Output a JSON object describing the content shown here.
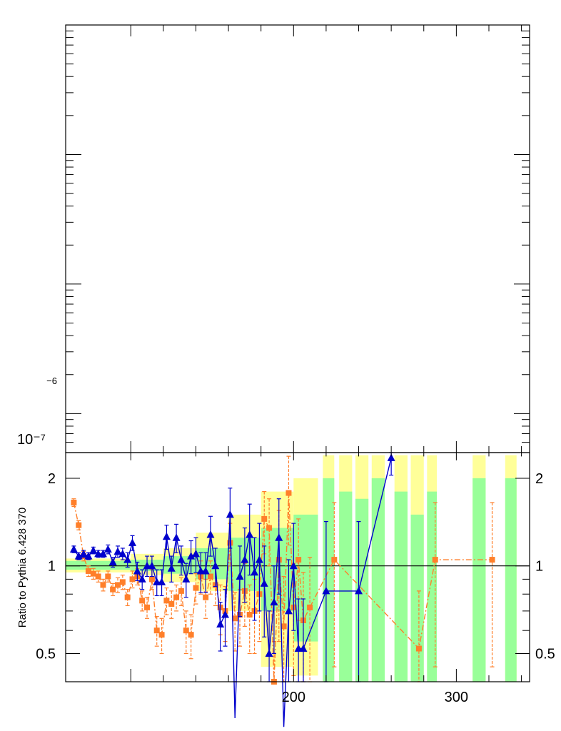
{
  "chart_data": [
    {
      "panel": "top",
      "type": "line",
      "title": "",
      "xlabel": "",
      "ylabel": "",
      "yscale": "log",
      "ylim": [
        5e-08,
        0.0001
      ],
      "xlim": [
        60,
        345
      ],
      "ytick_labels": [
        "10⁻⁷",
        "−6"
      ],
      "series": []
    },
    {
      "panel": "bottom",
      "type": "line",
      "xlabel": "",
      "ylabel": "Ratio to Pythia 6.428 370",
      "yscale": "log",
      "ylim": [
        0.4,
        2.45
      ],
      "xlim": [
        60,
        345
      ],
      "xticks": [
        200,
        300
      ],
      "xtick_labels": [
        "200",
        "300"
      ],
      "yticks": [
        0.5,
        1,
        2
      ],
      "ytick_labels": [
        "0.5",
        "1",
        "2"
      ],
      "reference_line": 1,
      "colors": {
        "outer_band": "#ffff99",
        "inner_band": "#99ff99",
        "series_a": "#ff7f2a",
        "series_b": "#0000cc",
        "reference": "#000000"
      },
      "bands": [
        {
          "x0": 60,
          "x1": 100,
          "lo_outer": 0.95,
          "hi_outer": 1.06,
          "lo_inner": 0.97,
          "hi_inner": 1.04
        },
        {
          "x0": 100,
          "x1": 120,
          "lo_outer": 0.93,
          "hi_outer": 1.1,
          "lo_inner": 0.96,
          "hi_inner": 1.05
        },
        {
          "x0": 120,
          "x1": 140,
          "lo_outer": 0.88,
          "hi_outer": 1.15,
          "lo_inner": 0.94,
          "hi_inner": 1.08
        },
        {
          "x0": 140,
          "x1": 160,
          "lo_outer": 0.82,
          "hi_outer": 1.3,
          "lo_inner": 0.9,
          "hi_inner": 1.15
        },
        {
          "x0": 160,
          "x1": 180,
          "lo_outer": 0.7,
          "hi_outer": 1.5,
          "lo_inner": 0.82,
          "hi_inner": 1.25
        },
        {
          "x0": 180,
          "x1": 200,
          "lo_outer": 0.45,
          "hi_outer": 1.8,
          "lo_inner": 0.7,
          "hi_inner": 1.35
        },
        {
          "x0": 200,
          "x1": 215,
          "lo_outer": 0.42,
          "hi_outer": 2.0,
          "lo_inner": 0.55,
          "hi_inner": 1.5
        },
        {
          "x0": 218,
          "x1": 225,
          "lo_outer": 0.4,
          "hi_outer": 2.4,
          "lo_inner": 0.4,
          "hi_inner": 2.0
        },
        {
          "x0": 228,
          "x1": 236,
          "lo_outer": 0.4,
          "hi_outer": 2.4,
          "lo_inner": 0.4,
          "hi_inner": 1.8
        },
        {
          "x0": 238,
          "x1": 246,
          "lo_outer": 0.4,
          "hi_outer": 2.4,
          "lo_inner": 0.4,
          "hi_inner": 1.7
        },
        {
          "x0": 248,
          "x1": 256,
          "lo_outer": 0.4,
          "hi_outer": 2.4,
          "lo_inner": 0.4,
          "hi_inner": 2.0
        },
        {
          "x0": 262,
          "x1": 270,
          "lo_outer": 0.4,
          "hi_outer": 2.4,
          "lo_inner": 0.4,
          "hi_inner": 1.8
        },
        {
          "x0": 272,
          "x1": 280,
          "lo_outer": 0.4,
          "hi_outer": 2.4,
          "lo_inner": 0.4,
          "hi_inner": 1.5
        },
        {
          "x0": 282,
          "x1": 288,
          "lo_outer": 0.4,
          "hi_outer": 2.4,
          "lo_inner": 0.4,
          "hi_inner": 1.8
        },
        {
          "x0": 310,
          "x1": 318,
          "lo_outer": 0.4,
          "hi_outer": 2.4,
          "lo_inner": 0.4,
          "hi_inner": 2.0
        },
        {
          "x0": 330,
          "x1": 337,
          "lo_outer": 0.4,
          "hi_outer": 2.4,
          "lo_inner": 0.4,
          "hi_inner": 2.0
        }
      ],
      "series": [
        {
          "name": "orange-squares-dashdot",
          "marker": "square",
          "linestyle": "dash-dot",
          "x": [
            65,
            68,
            71,
            74,
            77,
            80,
            83,
            86,
            89,
            92,
            95,
            98,
            101,
            104,
            107,
            110,
            113,
            116,
            119,
            122,
            125,
            128,
            131,
            134,
            137,
            140,
            143,
            146,
            149,
            152,
            155,
            158,
            161,
            164,
            167,
            170,
            173,
            176,
            179,
            182,
            185,
            188,
            191,
            194,
            197,
            200,
            203,
            206,
            210,
            225,
            277,
            287,
            322
          ],
          "values": [
            1.65,
            1.38,
            1.08,
            0.96,
            0.94,
            0.92,
            0.86,
            0.92,
            0.83,
            0.86,
            0.88,
            0.78,
            0.9,
            0.92,
            0.76,
            0.72,
            0.9,
            0.6,
            0.58,
            0.76,
            0.74,
            0.78,
            0.82,
            0.6,
            0.58,
            0.84,
            0.92,
            0.78,
            0.92,
            0.86,
            0.72,
            0.7,
            1.2,
            0.66,
            0.68,
            0.82,
            0.68,
            0.7,
            0.8,
            1.45,
            1.35,
            0.4,
            1.05,
            0.62,
            1.78,
            0.72,
            1.05,
            0.65,
            0.72,
            1.05,
            0.52,
            1.05,
            1.05
          ],
          "err": [
            0.05,
            0.05,
            0.04,
            0.04,
            0.04,
            0.04,
            0.04,
            0.04,
            0.04,
            0.05,
            0.05,
            0.05,
            0.06,
            0.06,
            0.06,
            0.06,
            0.07,
            0.07,
            0.08,
            0.08,
            0.08,
            0.08,
            0.09,
            0.1,
            0.1,
            0.1,
            0.12,
            0.12,
            0.12,
            0.13,
            0.14,
            0.15,
            0.2,
            0.15,
            0.15,
            0.2,
            0.18,
            0.2,
            0.25,
            0.35,
            0.35,
            0.15,
            0.5,
            0.3,
            0.6,
            0.3,
            0.4,
            0.3,
            0.35,
            0.6,
            0.3,
            0.6,
            0.6
          ]
        },
        {
          "name": "blue-triangles-solid",
          "marker": "triangle",
          "linestyle": "solid",
          "x": [
            65,
            68,
            71,
            74,
            77,
            80,
            83,
            86,
            89,
            92,
            95,
            98,
            101,
            104,
            107,
            110,
            113,
            116,
            119,
            122,
            125,
            128,
            131,
            134,
            137,
            140,
            143,
            146,
            149,
            152,
            155,
            158,
            161,
            164,
            167,
            170,
            173,
            176,
            179,
            182,
            185,
            188,
            191,
            194,
            197,
            200,
            203,
            206,
            220,
            240,
            260
          ],
          "values": [
            1.14,
            1.08,
            1.1,
            1.08,
            1.13,
            1.1,
            1.1,
            1.14,
            1.03,
            1.12,
            1.1,
            1.05,
            1.2,
            0.96,
            0.9,
            1.0,
            1.0,
            0.88,
            0.88,
            1.26,
            0.98,
            1.25,
            1.05,
            0.9,
            1.08,
            1.1,
            0.96,
            0.96,
            1.28,
            1.0,
            0.63,
            0.68,
            1.5,
            0.3,
            0.92,
            1.05,
            1.28,
            0.95,
            1.05,
            0.87,
            0.5,
            0.75,
            1.25,
            0.28,
            0.7,
            1.0,
            0.52,
            0.52,
            0.82,
            0.82,
            2.35
          ],
          "err": [
            0.03,
            0.03,
            0.03,
            0.03,
            0.03,
            0.03,
            0.03,
            0.04,
            0.04,
            0.05,
            0.05,
            0.06,
            0.07,
            0.07,
            0.07,
            0.08,
            0.08,
            0.09,
            0.09,
            0.12,
            0.1,
            0.14,
            0.12,
            0.12,
            0.14,
            0.15,
            0.15,
            0.15,
            0.2,
            0.15,
            0.12,
            0.15,
            0.35,
            0.1,
            0.25,
            0.3,
            0.35,
            0.3,
            0.35,
            0.3,
            0.2,
            0.25,
            0.45,
            0.1,
            0.35,
            0.4,
            0.25,
            0.25,
            0.6,
            0.6,
            0.3
          ]
        }
      ]
    }
  ]
}
